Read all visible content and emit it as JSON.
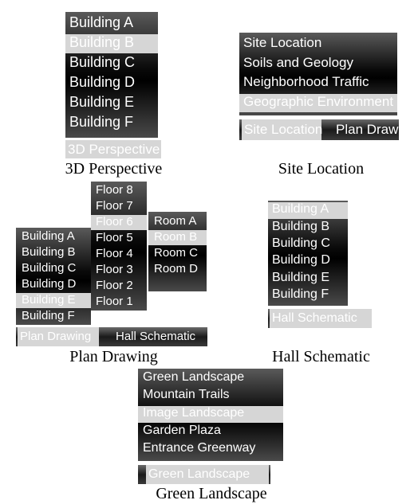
{
  "panels": {
    "perspective": {
      "items": [
        "Building A",
        "Building B",
        "Building C",
        "Building D",
        "Building E",
        "Building F"
      ],
      "selected_item": "Building B",
      "tab": "3D Perspective",
      "caption": "3D Perspective"
    },
    "site": {
      "items": [
        "Site Location",
        "Soils and Geology",
        "Neighborhood Traffic",
        "Geographic Environment"
      ],
      "selected_item": "Geographic Environment",
      "tabs": [
        "Site Location",
        "Plan Draw"
      ],
      "selected_tab": "Site Location",
      "caption": "Site Location"
    },
    "plan": {
      "buildings": [
        "Building A",
        "Building B",
        "Building C",
        "Building D",
        "Building E",
        "Building F"
      ],
      "selected_building": "Building E",
      "floors": [
        "Floor 8",
        "Floor 7",
        "Floor 6",
        "Floor 5",
        "Floor 4",
        "Floor 3",
        "Floor 2",
        "Floor 1"
      ],
      "selected_floor": "Floor 6",
      "rooms": [
        "Room A",
        "Room B",
        "Room C",
        "Room D"
      ],
      "selected_room": "Room B",
      "tabs": [
        "Plan Drawing",
        "Hall Schematic"
      ],
      "selected_tab": "Plan Drawing",
      "caption": "Plan Drawing"
    },
    "hall": {
      "items": [
        "Building A",
        "Building B",
        "Building C",
        "Building D",
        "Building E",
        "Building F"
      ],
      "selected_item": "Building A",
      "tab": "Hall Schematic",
      "caption": "Hall Schematic"
    },
    "landscape": {
      "items": [
        "Green Landscape",
        "Mountain Trails",
        "Image Landscape",
        "Garden Plaza",
        "Entrance Greenway"
      ],
      "selected_item": "Image Landscape",
      "tab": "Green Landscape",
      "caption": "Green Landscape"
    }
  },
  "colors": {
    "highlight": "#d6d6d6",
    "menu_dark": "#000000",
    "menu_text": "#ffffff"
  }
}
